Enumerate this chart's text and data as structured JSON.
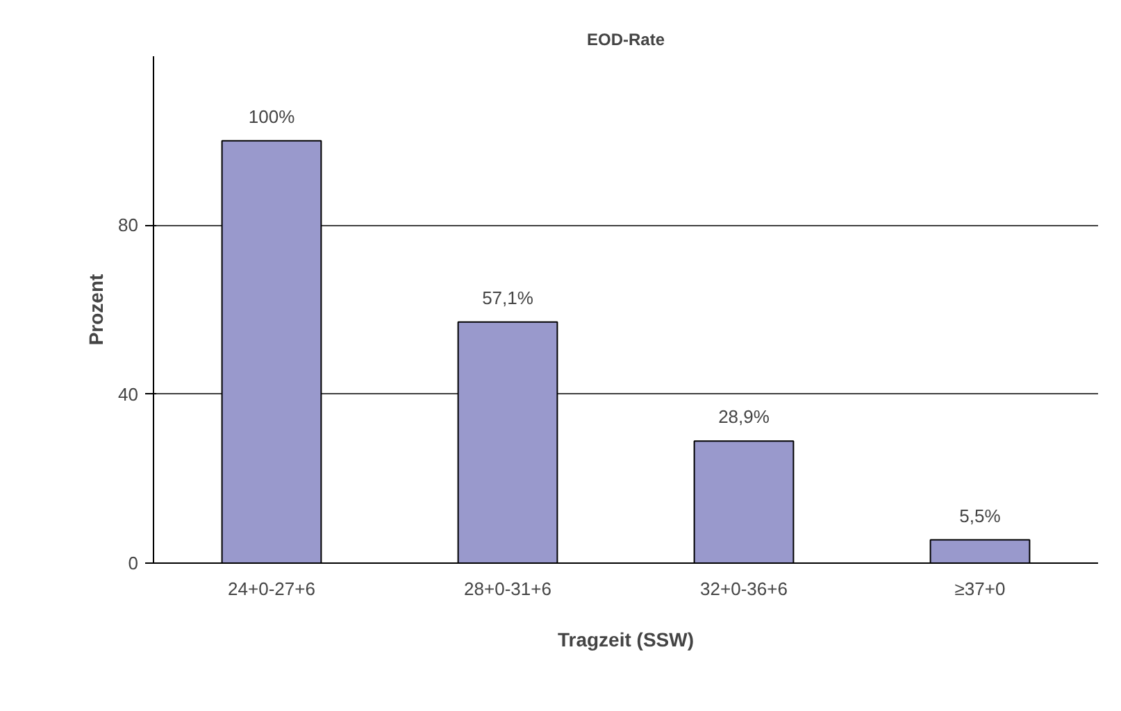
{
  "chart_data": {
    "type": "bar",
    "title": "EOD-Rate",
    "xlabel": "Tragzeit (SSW)",
    "ylabel": "Prozent",
    "categories": [
      "24+0-27+6",
      "28+0-31+6",
      "32+0-36+6",
      "≥37+0"
    ],
    "values": [
      100,
      57.1,
      28.9,
      5.5
    ],
    "value_labels": [
      "100%",
      "57,1%",
      "28,9%",
      "5,5%"
    ],
    "color": "#9999cc",
    "ylim": [
      0,
      120
    ],
    "yticks": [
      0,
      40,
      80
    ],
    "grid": "y"
  }
}
